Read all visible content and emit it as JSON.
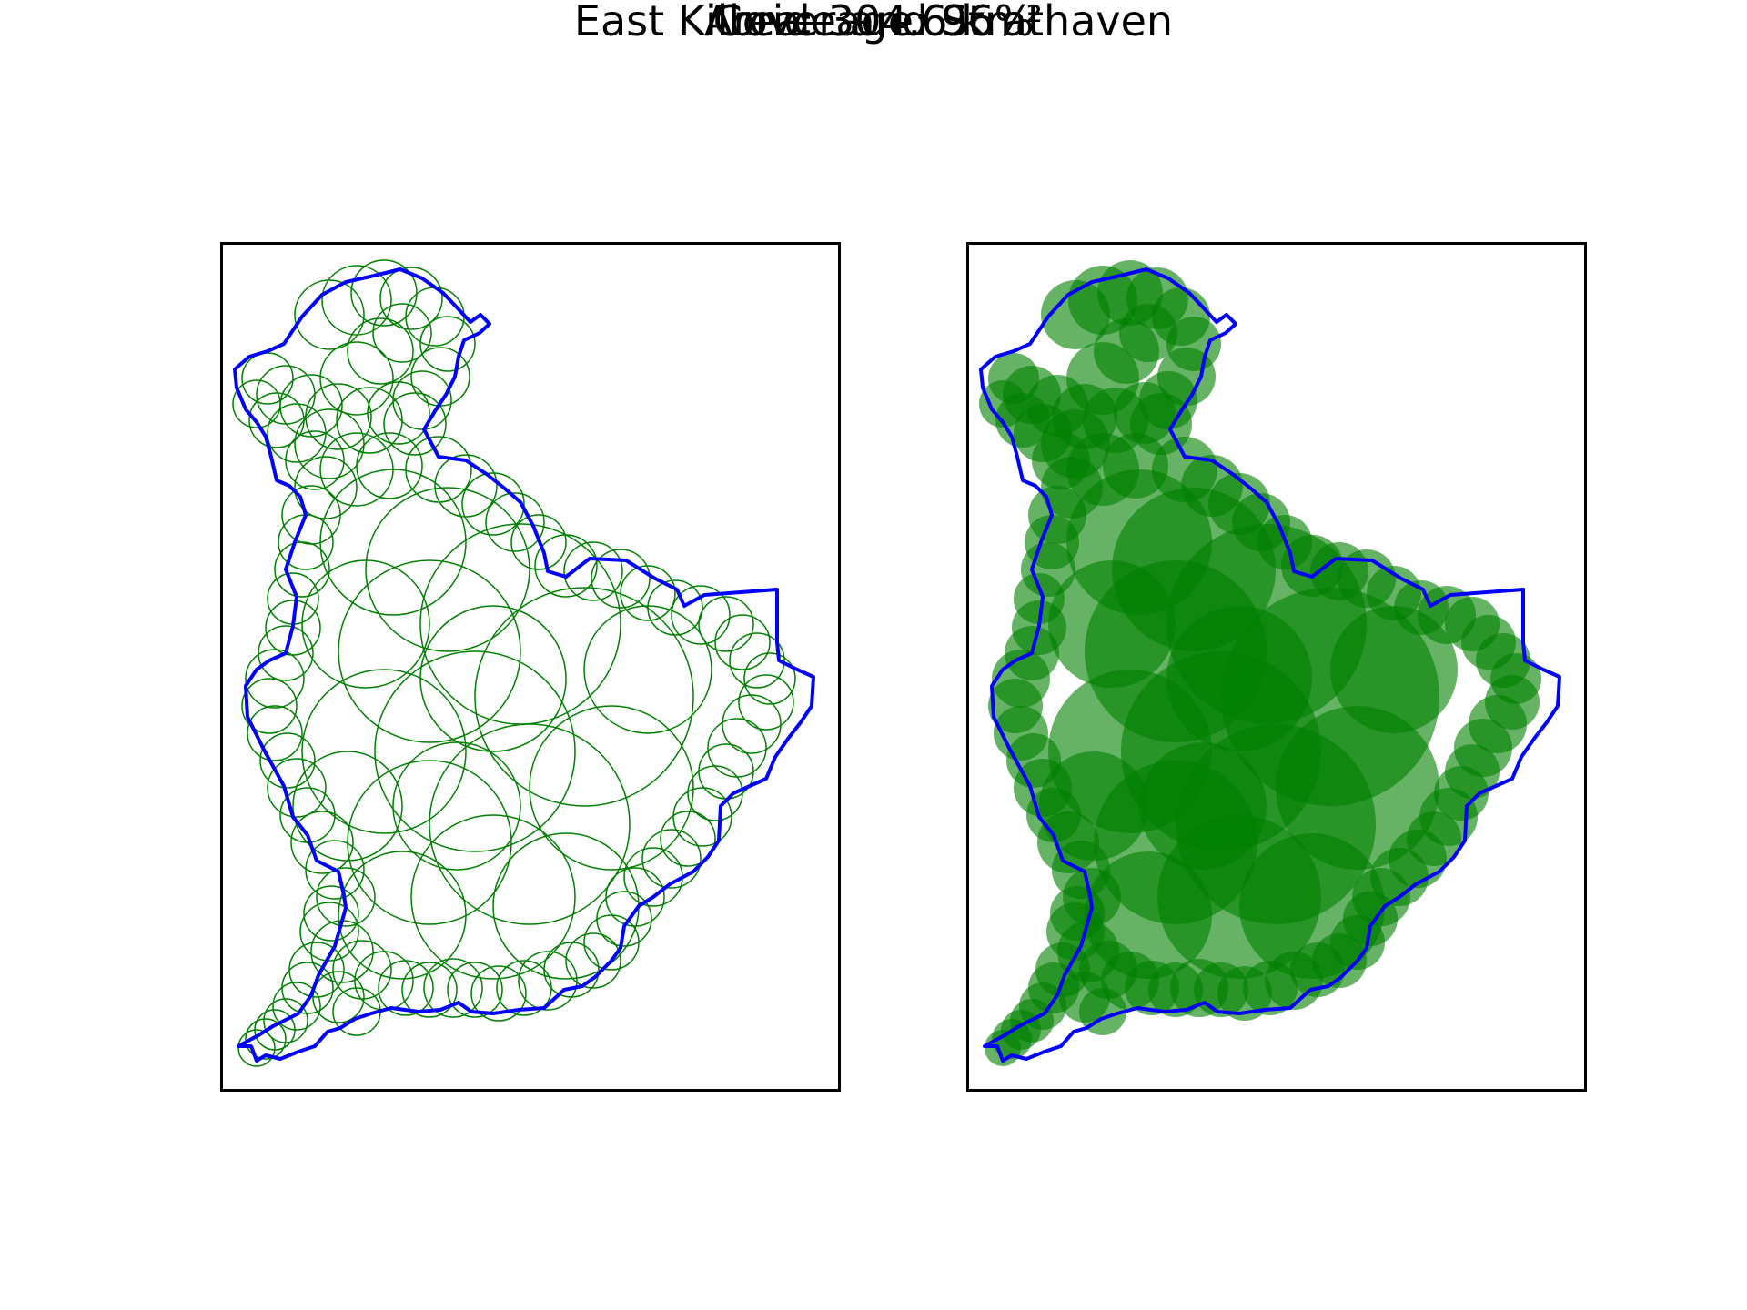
{
  "title": "East Kilbride and Strathaven",
  "coverage_label": "Coverage: 96%",
  "area_label": "Area: 304.6 km²",
  "map": {
    "coverage_percent": 96,
    "area_km2": 304.6,
    "boundary_color": "#0000ff",
    "circle_color": "#008000",
    "panels": [
      {
        "name": "circle-outlines",
        "style": "outline"
      },
      {
        "name": "circle-filled",
        "style": "filled",
        "opacity": 0.6
      }
    ]
  }
}
